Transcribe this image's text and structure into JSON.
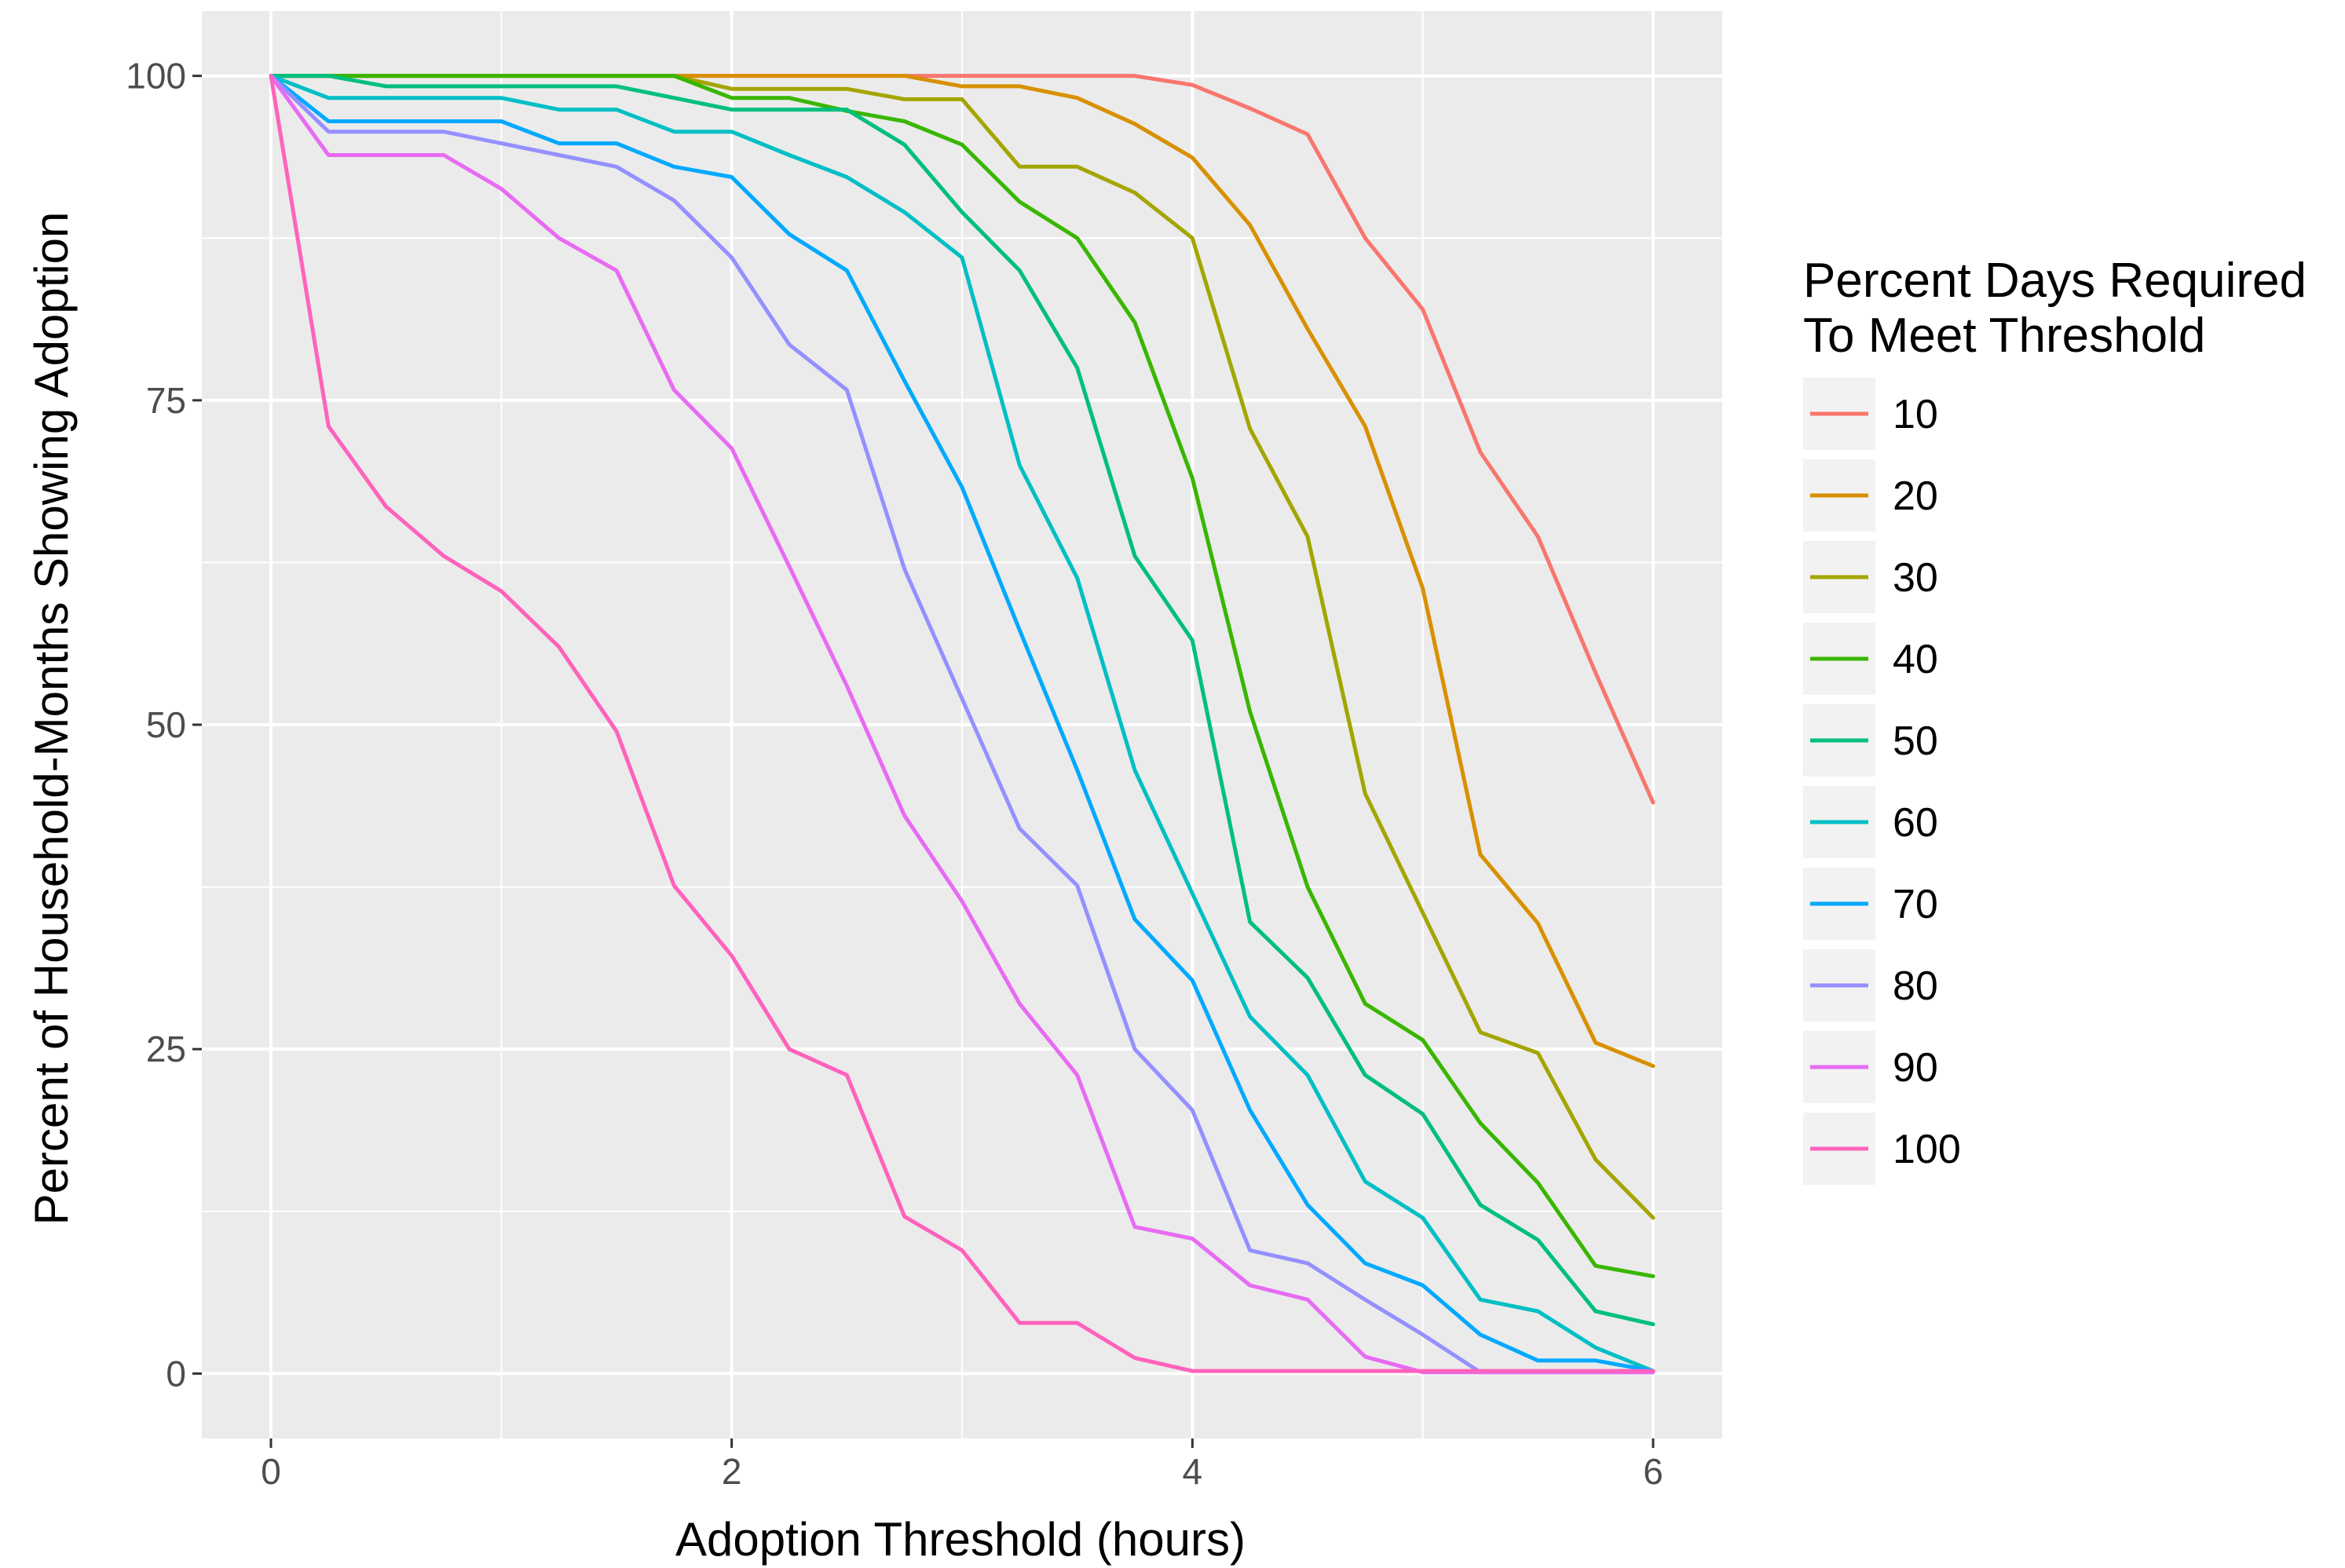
{
  "chart_data": {
    "type": "line",
    "title": "",
    "xlabel": "Adoption Threshold (hours)",
    "ylabel": "Percent of Household-Months Showing Adoption",
    "xlim": [
      -0.3,
      6.3
    ],
    "ylim": [
      -5,
      105
    ],
    "x_ticks": [
      0,
      2,
      4,
      6
    ],
    "x_tick_labels": [
      "0",
      "2",
      "4",
      "6"
    ],
    "y_ticks": [
      0,
      25,
      50,
      75,
      100
    ],
    "y_tick_labels": [
      "0",
      "25",
      "50",
      "75",
      "100"
    ],
    "grid": true,
    "legend": {
      "title_line1": "Percent Days Required",
      "title_line2": "To Meet Threshold",
      "position": "right"
    },
    "x": [
      0,
      0.25,
      0.5,
      0.75,
      1,
      1.25,
      1.5,
      1.75,
      2,
      2.25,
      2.5,
      2.75,
      3,
      3.25,
      3.5,
      3.75,
      4,
      4.25,
      4.5,
      4.75,
      5,
      5.25,
      5.5,
      5.75,
      6
    ],
    "series": [
      {
        "name": "10",
        "color": "#F8766D",
        "values": [
          100,
          100,
          100,
          100,
          100,
          100,
          100,
          100,
          100,
          100,
          100,
          100,
          100,
          100,
          100,
          100,
          99.3,
          97.5,
          95.5,
          87.5,
          82,
          71,
          64.5,
          54,
          44
        ]
      },
      {
        "name": "20",
        "color": "#D89000",
        "values": [
          100,
          100,
          100,
          100,
          100,
          100,
          100,
          100,
          100,
          100,
          100,
          100,
          99.2,
          99.2,
          98.3,
          96.3,
          93.7,
          88.5,
          80.5,
          73,
          60.5,
          40,
          34.7,
          25.5,
          23.7
        ]
      },
      {
        "name": "30",
        "color": "#A3A500",
        "values": [
          100,
          100,
          100,
          100,
          100,
          100,
          100,
          100,
          99,
          99,
          99,
          98.2,
          98.2,
          93,
          93,
          91,
          87.5,
          72.8,
          64.5,
          44.7,
          35.5,
          26.3,
          24.7,
          16.5,
          12
        ]
      },
      {
        "name": "40",
        "color": "#39B600",
        "values": [
          100,
          100,
          100,
          100,
          100,
          100,
          100,
          100,
          98.3,
          98.3,
          97.3,
          96.5,
          94.7,
          90.3,
          87.5,
          81,
          69,
          51,
          37.5,
          28.5,
          25.7,
          19.3,
          14.7,
          8.3,
          7.5
        ]
      },
      {
        "name": "50",
        "color": "#00BF7D",
        "values": [
          100,
          100,
          99.2,
          99.2,
          99.2,
          99.2,
          99.2,
          98.3,
          97.4,
          97.4,
          97.4,
          94.7,
          89.5,
          85,
          77.5,
          63,
          56.5,
          34.8,
          30.5,
          23,
          20,
          13,
          10.3,
          4.8,
          3.8
        ]
      },
      {
        "name": "60",
        "color": "#00BFC4",
        "values": [
          100,
          98.3,
          98.3,
          98.3,
          98.3,
          97.4,
          97.4,
          95.7,
          95.7,
          93.9,
          92.2,
          89.5,
          86,
          70,
          61.3,
          46.5,
          37,
          27.5,
          23,
          14.8,
          12,
          5.7,
          4.8,
          2,
          0.2
        ]
      },
      {
        "name": "70",
        "color": "#00A9FF",
        "values": [
          100,
          96.5,
          96.5,
          96.5,
          96.5,
          94.8,
          94.8,
          93,
          92.2,
          87.8,
          85,
          76.5,
          68.3,
          57.3,
          46.5,
          35,
          30.3,
          20.3,
          13,
          8.5,
          6.8,
          3,
          1,
          1,
          0.2
        ]
      },
      {
        "name": "80",
        "color": "#9590FF",
        "values": [
          100,
          95.7,
          95.7,
          95.7,
          94.8,
          93.9,
          93,
          90.4,
          86,
          79.3,
          75.8,
          62,
          52,
          42,
          37.6,
          25,
          20.3,
          9.5,
          8.5,
          5.7,
          3,
          0.1,
          0.1,
          0.1,
          0.1
        ]
      },
      {
        "name": "90",
        "color": "#E76BF3",
        "values": [
          100,
          93.9,
          93.9,
          93.9,
          91.3,
          87.5,
          85,
          75.8,
          71.3,
          62.2,
          53,
          43,
          36.4,
          28.5,
          23,
          11.3,
          10.4,
          6.8,
          5.7,
          1.3,
          0.1,
          0.1,
          0.1,
          0.1,
          0.1
        ]
      },
      {
        "name": "100",
        "color": "#FF62BC",
        "values": [
          100,
          73,
          66.8,
          63,
          60.3,
          56,
          49.5,
          37.6,
          32.2,
          25,
          23,
          12.1,
          9.5,
          3.9,
          3.9,
          1.2,
          0.2,
          0.2,
          0.2,
          0.2,
          0.2,
          0.2,
          0.2,
          0.2,
          0.2
        ]
      }
    ]
  }
}
